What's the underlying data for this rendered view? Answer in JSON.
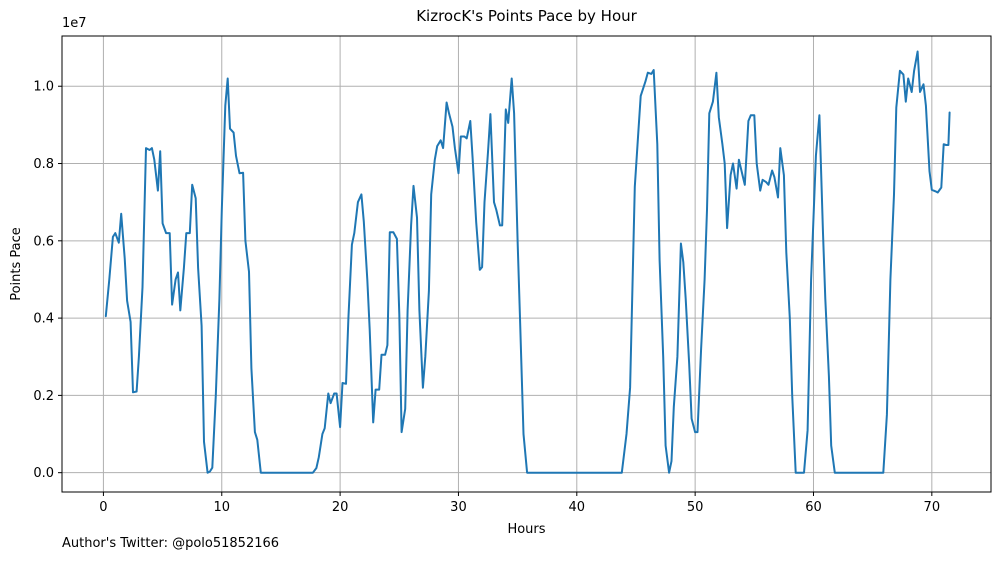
{
  "chart_data": {
    "type": "line",
    "title": "KizrocK's Points Pace by Hour",
    "xlabel": "Hours",
    "ylabel": "Points Pace",
    "y_offset_label": "1e7",
    "xlim": [
      -3.5,
      75
    ],
    "ylim": [
      -0.05,
      1.13
    ],
    "y_scale_note": "y values in units of 1e7",
    "xticks": [
      0,
      10,
      20,
      30,
      40,
      50,
      60,
      70
    ],
    "xtick_labels": [
      "0",
      "10",
      "20",
      "30",
      "40",
      "50",
      "60",
      "70"
    ],
    "yticks": [
      0.0,
      0.2,
      0.4,
      0.6,
      0.8,
      1.0
    ],
    "ytick_labels": [
      "0.0",
      "0.2",
      "0.4",
      "0.6",
      "0.8",
      "1.0"
    ],
    "grid": true,
    "color": "#1f77b4",
    "series": [
      {
        "name": "",
        "points": [
          [
            0.2,
            0.405
          ],
          [
            0.5,
            0.5
          ],
          [
            0.8,
            0.61
          ],
          [
            1.0,
            0.62
          ],
          [
            1.3,
            0.595
          ],
          [
            1.5,
            0.67
          ],
          [
            1.8,
            0.555
          ],
          [
            2.0,
            0.445
          ],
          [
            2.3,
            0.39
          ],
          [
            2.5,
            0.208
          ],
          [
            2.8,
            0.21
          ],
          [
            3.0,
            0.3
          ],
          [
            3.3,
            0.48
          ],
          [
            3.6,
            0.84
          ],
          [
            3.9,
            0.835
          ],
          [
            4.1,
            0.84
          ],
          [
            4.3,
            0.81
          ],
          [
            4.6,
            0.73
          ],
          [
            4.8,
            0.832
          ],
          [
            5.0,
            0.645
          ],
          [
            5.3,
            0.62
          ],
          [
            5.6,
            0.62
          ],
          [
            5.8,
            0.435
          ],
          [
            6.1,
            0.5
          ],
          [
            6.3,
            0.518
          ],
          [
            6.5,
            0.42
          ],
          [
            6.8,
            0.53
          ],
          [
            7.0,
            0.62
          ],
          [
            7.3,
            0.62
          ],
          [
            7.5,
            0.745
          ],
          [
            7.8,
            0.71
          ],
          [
            8.0,
            0.53
          ],
          [
            8.3,
            0.38
          ],
          [
            8.5,
            0.08
          ],
          [
            8.8,
            0.0
          ],
          [
            9.0,
            0.003
          ],
          [
            9.2,
            0.013
          ],
          [
            9.5,
            0.2
          ],
          [
            9.8,
            0.45
          ],
          [
            10.0,
            0.68
          ],
          [
            10.3,
            0.95
          ],
          [
            10.5,
            1.02
          ],
          [
            10.7,
            0.89
          ],
          [
            11.0,
            0.88
          ],
          [
            11.2,
            0.82
          ],
          [
            11.5,
            0.775
          ],
          [
            11.8,
            0.776
          ],
          [
            12.0,
            0.6
          ],
          [
            12.3,
            0.52
          ],
          [
            12.5,
            0.27
          ],
          [
            12.8,
            0.105
          ],
          [
            13.0,
            0.085
          ],
          [
            13.3,
            0.0
          ],
          [
            14.0,
            0.0
          ],
          [
            15.0,
            0.0
          ],
          [
            16.0,
            0.0
          ],
          [
            17.0,
            0.0
          ],
          [
            17.7,
            0.0
          ],
          [
            18.0,
            0.012
          ],
          [
            18.2,
            0.04
          ],
          [
            18.5,
            0.1
          ],
          [
            18.7,
            0.115
          ],
          [
            19.0,
            0.205
          ],
          [
            19.2,
            0.18
          ],
          [
            19.5,
            0.205
          ],
          [
            19.7,
            0.205
          ],
          [
            20.0,
            0.118
          ],
          [
            20.2,
            0.232
          ],
          [
            20.5,
            0.23
          ],
          [
            20.7,
            0.4
          ],
          [
            21.0,
            0.59
          ],
          [
            21.2,
            0.62
          ],
          [
            21.5,
            0.7
          ],
          [
            21.8,
            0.72
          ],
          [
            22.0,
            0.65
          ],
          [
            22.3,
            0.5
          ],
          [
            22.5,
            0.37
          ],
          [
            22.8,
            0.13
          ],
          [
            23.0,
            0.215
          ],
          [
            23.3,
            0.215
          ],
          [
            23.5,
            0.305
          ],
          [
            23.8,
            0.305
          ],
          [
            24.0,
            0.33
          ],
          [
            24.2,
            0.622
          ],
          [
            24.5,
            0.622
          ],
          [
            24.8,
            0.605
          ],
          [
            25.0,
            0.41
          ],
          [
            25.2,
            0.105
          ],
          [
            25.5,
            0.165
          ],
          [
            25.7,
            0.42
          ],
          [
            26.0,
            0.64
          ],
          [
            26.2,
            0.742
          ],
          [
            26.5,
            0.66
          ],
          [
            26.7,
            0.42
          ],
          [
            27.0,
            0.22
          ],
          [
            27.2,
            0.3
          ],
          [
            27.5,
            0.47
          ],
          [
            27.7,
            0.72
          ],
          [
            28.0,
            0.81
          ],
          [
            28.2,
            0.845
          ],
          [
            28.5,
            0.86
          ],
          [
            28.7,
            0.84
          ],
          [
            29.0,
            0.958
          ],
          [
            29.2,
            0.93
          ],
          [
            29.5,
            0.895
          ],
          [
            29.7,
            0.84
          ],
          [
            30.0,
            0.775
          ],
          [
            30.2,
            0.87
          ],
          [
            30.5,
            0.87
          ],
          [
            30.7,
            0.865
          ],
          [
            31.0,
            0.91
          ],
          [
            31.2,
            0.81
          ],
          [
            31.5,
            0.648
          ],
          [
            31.8,
            0.525
          ],
          [
            32.0,
            0.532
          ],
          [
            32.2,
            0.7
          ],
          [
            32.5,
            0.83
          ],
          [
            32.7,
            0.928
          ],
          [
            33.0,
            0.7
          ],
          [
            33.2,
            0.68
          ],
          [
            33.5,
            0.64
          ],
          [
            33.7,
            0.64
          ],
          [
            34.0,
            0.94
          ],
          [
            34.2,
            0.905
          ],
          [
            34.5,
            1.02
          ],
          [
            34.7,
            0.93
          ],
          [
            35.0,
            0.6
          ],
          [
            35.2,
            0.4
          ],
          [
            35.5,
            0.1
          ],
          [
            35.8,
            0.0
          ],
          [
            36.5,
            0.0
          ],
          [
            38.0,
            0.0
          ],
          [
            40.0,
            0.0
          ],
          [
            42.0,
            0.0
          ],
          [
            43.8,
            0.0
          ],
          [
            44.2,
            0.1
          ],
          [
            44.5,
            0.22
          ],
          [
            44.9,
            0.74
          ],
          [
            45.2,
            0.88
          ],
          [
            45.4,
            0.975
          ],
          [
            45.8,
            1.012
          ],
          [
            46.0,
            1.035
          ],
          [
            46.3,
            1.032
          ],
          [
            46.5,
            1.042
          ],
          [
            46.8,
            0.85
          ],
          [
            47.0,
            0.55
          ],
          [
            47.3,
            0.3
          ],
          [
            47.5,
            0.07
          ],
          [
            47.8,
            0.0
          ],
          [
            48.0,
            0.03
          ],
          [
            48.2,
            0.17
          ],
          [
            48.5,
            0.3
          ],
          [
            48.8,
            0.593
          ],
          [
            49.0,
            0.545
          ],
          [
            49.2,
            0.45
          ],
          [
            49.5,
            0.28
          ],
          [
            49.7,
            0.14
          ],
          [
            50.0,
            0.105
          ],
          [
            50.2,
            0.105
          ],
          [
            50.5,
            0.32
          ],
          [
            50.8,
            0.5
          ],
          [
            51.0,
            0.68
          ],
          [
            51.2,
            0.93
          ],
          [
            51.5,
            0.96
          ],
          [
            51.8,
            1.035
          ],
          [
            52.0,
            0.92
          ],
          [
            52.3,
            0.85
          ],
          [
            52.5,
            0.8
          ],
          [
            52.7,
            0.633
          ],
          [
            53.0,
            0.77
          ],
          [
            53.2,
            0.8
          ],
          [
            53.5,
            0.735
          ],
          [
            53.7,
            0.81
          ],
          [
            54.0,
            0.77
          ],
          [
            54.2,
            0.745
          ],
          [
            54.5,
            0.91
          ],
          [
            54.7,
            0.925
          ],
          [
            55.0,
            0.925
          ],
          [
            55.2,
            0.8
          ],
          [
            55.5,
            0.73
          ],
          [
            55.7,
            0.758
          ],
          [
            56.0,
            0.752
          ],
          [
            56.2,
            0.745
          ],
          [
            56.5,
            0.782
          ],
          [
            56.7,
            0.765
          ],
          [
            57.0,
            0.712
          ],
          [
            57.2,
            0.84
          ],
          [
            57.5,
            0.77
          ],
          [
            57.7,
            0.57
          ],
          [
            58.0,
            0.4
          ],
          [
            58.2,
            0.2
          ],
          [
            58.5,
            0.0
          ],
          [
            58.8,
            0.0
          ],
          [
            59.2,
            0.0
          ],
          [
            59.5,
            0.11
          ],
          [
            59.8,
            0.5
          ],
          [
            60.2,
            0.82
          ],
          [
            60.5,
            0.925
          ],
          [
            60.8,
            0.62
          ],
          [
            61.0,
            0.45
          ],
          [
            61.3,
            0.25
          ],
          [
            61.5,
            0.07
          ],
          [
            61.8,
            0.0
          ],
          [
            63.0,
            0.0
          ],
          [
            64.5,
            0.0
          ],
          [
            65.9,
            0.0
          ],
          [
            66.2,
            0.15
          ],
          [
            66.5,
            0.5
          ],
          [
            66.8,
            0.72
          ],
          [
            67.0,
            0.945
          ],
          [
            67.3,
            1.04
          ],
          [
            67.6,
            1.03
          ],
          [
            67.8,
            0.96
          ],
          [
            68.0,
            1.02
          ],
          [
            68.3,
            0.985
          ],
          [
            68.5,
            1.04
          ],
          [
            68.8,
            1.09
          ],
          [
            69.0,
            0.985
          ],
          [
            69.3,
            1.005
          ],
          [
            69.5,
            0.95
          ],
          [
            69.8,
            0.78
          ],
          [
            70.0,
            0.732
          ],
          [
            70.3,
            0.728
          ],
          [
            70.5,
            0.725
          ],
          [
            70.8,
            0.738
          ],
          [
            71.0,
            0.85
          ],
          [
            71.2,
            0.848
          ],
          [
            71.4,
            0.848
          ],
          [
            71.5,
            0.932
          ]
        ]
      }
    ]
  },
  "footer": {
    "text": "Author's Twitter: @polo51852166"
  }
}
